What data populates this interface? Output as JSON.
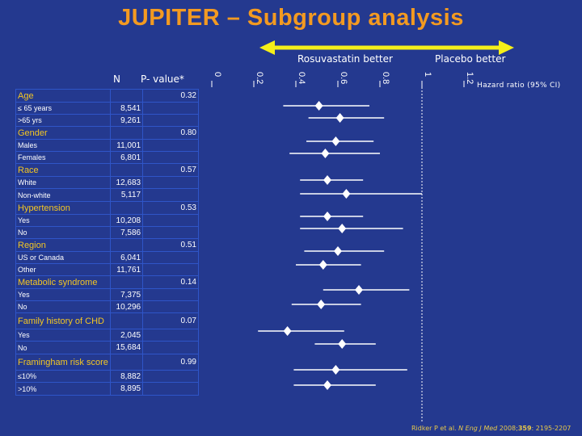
{
  "title": "JUPITER – Subgroup analysis",
  "header": {
    "rosuva_label": "Rosuvastatin better",
    "placebo_label": "Placebo better",
    "n_col": "N",
    "p_col": "P- value*",
    "hr_label": "Hazard ratio (95% CI)"
  },
  "colors": {
    "background": "#24398f",
    "title": "#f39a21",
    "group_label": "#f3c623",
    "arrow": "#f5ef19",
    "marker": "#ffffff"
  },
  "rows": [
    {
      "type": "group",
      "label": "Age",
      "p": "0.32"
    },
    {
      "type": "sub",
      "label": "≤ 65 years",
      "n": "8,541"
    },
    {
      "type": "sub",
      "label": ">65 yrs",
      "n": "9,261"
    },
    {
      "type": "group",
      "label": "Gender",
      "p": "0.80"
    },
    {
      "type": "sub",
      "label": "Males",
      "n": "11,001"
    },
    {
      "type": "sub",
      "label": "Females",
      "n": "6,801"
    },
    {
      "type": "group",
      "label": "Race",
      "p": "0.57"
    },
    {
      "type": "sub",
      "label": "White",
      "n": "12,683"
    },
    {
      "type": "sub",
      "label": "Non-white",
      "n": "5,117"
    },
    {
      "type": "group",
      "label": "Hypertension",
      "p": "0.53"
    },
    {
      "type": "sub",
      "label": "Yes",
      "n": "10,208"
    },
    {
      "type": "sub",
      "label": "No",
      "n": "7,586"
    },
    {
      "type": "group",
      "label": "Region",
      "p": "0.51"
    },
    {
      "type": "sub",
      "label": "US or Canada",
      "n": "6,041"
    },
    {
      "type": "sub",
      "label": "Other",
      "n": "11,761"
    },
    {
      "type": "group",
      "label": "Metabolic syndrome",
      "p": "0.14"
    },
    {
      "type": "sub",
      "label": "Yes",
      "n": "7,375"
    },
    {
      "type": "sub",
      "label": "No",
      "n": "10,296"
    },
    {
      "type": "group",
      "label": "Family history of CHD",
      "p": "0.07"
    },
    {
      "type": "sub",
      "label": "Yes",
      "n": "2,045"
    },
    {
      "type": "sub",
      "label": "No",
      "n": "15,684"
    },
    {
      "type": "group",
      "label": "Framingham risk score",
      "p": "0.99"
    },
    {
      "type": "sub",
      "label": "≤10%",
      "n": "8,882"
    },
    {
      "type": "sub",
      "label": ">10%",
      "n": "8,895"
    }
  ],
  "chart_data": {
    "type": "forest",
    "xlabel": "Hazard ratio (95% CI)",
    "xlim": [
      0,
      1.2
    ],
    "xticks": [
      "0",
      "0.2",
      "0.4",
      "0.6",
      "0.8",
      "1",
      "1.2"
    ],
    "reference_line": 1,
    "points": [
      {
        "subgroup": "Age",
        "label": "≤ 65 years",
        "hr": 0.51,
        "lo": 0.34,
        "hi": 0.75
      },
      {
        "subgroup": "Age",
        "label": ">65 yrs",
        "hr": 0.61,
        "lo": 0.46,
        "hi": 0.82
      },
      {
        "subgroup": "Gender",
        "label": "Males",
        "hr": 0.59,
        "lo": 0.45,
        "hi": 0.77
      },
      {
        "subgroup": "Gender",
        "label": "Females",
        "hr": 0.54,
        "lo": 0.37,
        "hi": 0.8
      },
      {
        "subgroup": "Race",
        "label": "White",
        "hr": 0.55,
        "lo": 0.42,
        "hi": 0.72
      },
      {
        "subgroup": "Race",
        "label": "Non-white",
        "hr": 0.64,
        "lo": 0.42,
        "hi": 1.0
      },
      {
        "subgroup": "Hypertension",
        "label": "Yes",
        "hr": 0.55,
        "lo": 0.42,
        "hi": 0.72
      },
      {
        "subgroup": "Hypertension",
        "label": "No",
        "hr": 0.62,
        "lo": 0.42,
        "hi": 0.91
      },
      {
        "subgroup": "Region",
        "label": "US or Canada",
        "hr": 0.6,
        "lo": 0.44,
        "hi": 0.82
      },
      {
        "subgroup": "Region",
        "label": "Other",
        "hr": 0.53,
        "lo": 0.4,
        "hi": 0.71
      },
      {
        "subgroup": "Metabolic syndrome",
        "label": "Yes",
        "hr": 0.7,
        "lo": 0.53,
        "hi": 0.94
      },
      {
        "subgroup": "Metabolic syndrome",
        "label": "No",
        "hr": 0.52,
        "lo": 0.38,
        "hi": 0.71
      },
      {
        "subgroup": "Family history of CHD",
        "label": "Yes",
        "hr": 0.36,
        "lo": 0.22,
        "hi": 0.63
      },
      {
        "subgroup": "Family history of CHD",
        "label": "No",
        "hr": 0.62,
        "lo": 0.49,
        "hi": 0.78
      },
      {
        "subgroup": "Framingham risk score",
        "label": "≤10%",
        "hr": 0.59,
        "lo": 0.39,
        "hi": 0.93
      },
      {
        "subgroup": "Framingham risk score",
        "label": ">10%",
        "hr": 0.55,
        "lo": 0.39,
        "hi": 0.78
      }
    ]
  },
  "citation": {
    "authors": "Ridker P et al.",
    "journal": "N Eng J Med",
    "year": "2008;",
    "volume": "359",
    "pages": ": 2195-2207"
  }
}
